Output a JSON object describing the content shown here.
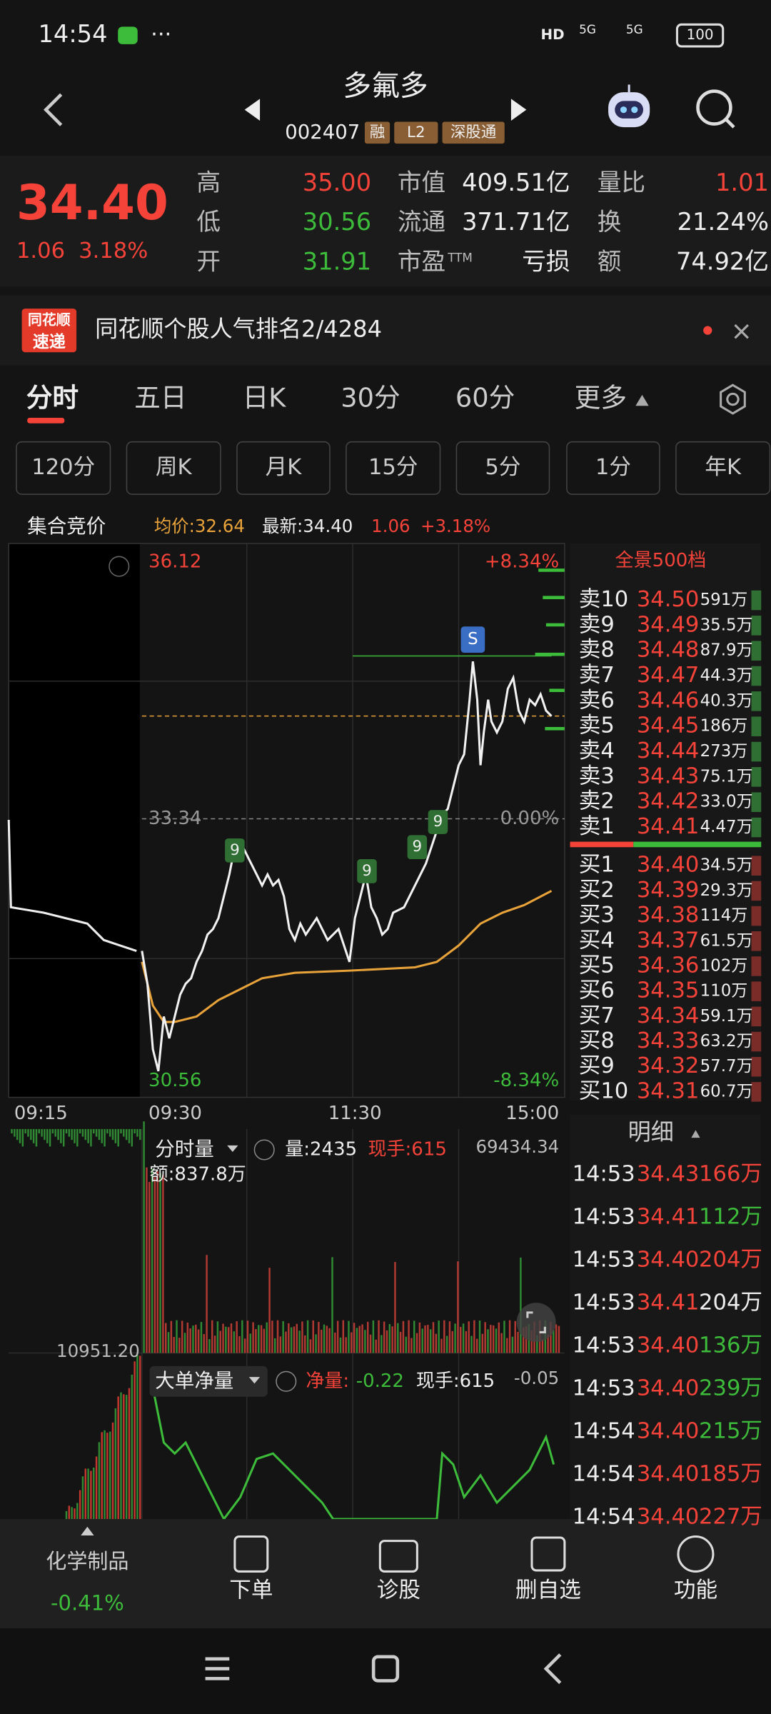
{
  "status_bar": {
    "time": "14:54",
    "hd": "HD",
    "network": "5G",
    "network2": "5G",
    "battery": "100"
  },
  "header": {
    "title": "多氟多",
    "code": "002407",
    "tags": [
      "融",
      "L2",
      "深股通"
    ]
  },
  "quote": {
    "price": "34.40",
    "change": "1.06",
    "change_pct": "3.18%",
    "stats": [
      {
        "label": "高",
        "value": "35.00"
      },
      {
        "label": "低",
        "value": "30.56"
      },
      {
        "label": "开",
        "value": "31.91"
      },
      {
        "label": "市值",
        "value": "409.51亿"
      },
      {
        "label": "流通",
        "value": "371.71亿"
      },
      {
        "label": "市盈",
        "label_sup": "TTM",
        "value": "亏损"
      },
      {
        "label": "量比",
        "value": "1.01"
      },
      {
        "label": "换",
        "value": "21.24%"
      },
      {
        "label": "额",
        "value": "74.92亿"
      }
    ]
  },
  "banner": {
    "badge_top": "同花顺",
    "badge_bottom": "速递",
    "text": "同花顺个股人气排名2/4284"
  },
  "tabs": [
    "分时",
    "五日",
    "日K",
    "30分",
    "60分",
    "更多"
  ],
  "sub_tabs": [
    "120分",
    "周K",
    "月K",
    "15分",
    "5分",
    "1分",
    "年K"
  ],
  "info_bar": {
    "title": "集合竞价",
    "avg": "均价:32.64",
    "latest": "最新:34.40",
    "change": "1.06",
    "change_pct": "+3.18%"
  },
  "price_chart": {
    "high": "36.12",
    "high_pct": "+8.34%",
    "base": "33.34",
    "base_pct": "0.00%",
    "low": "30.56",
    "low_pct": "-8.34%",
    "times": [
      "09:15",
      "09:30",
      "11:30",
      "15:00"
    ],
    "signal": "S",
    "markers": [
      "9",
      "9",
      "9",
      "9"
    ]
  },
  "order_book": {
    "title": "全景500档",
    "asks": [
      {
        "label": "卖10",
        "price": "34.50",
        "volume": "591万"
      },
      {
        "label": "卖9",
        "price": "34.49",
        "volume": "35.5万"
      },
      {
        "label": "卖8",
        "price": "34.48",
        "volume": "87.9万"
      },
      {
        "label": "卖7",
        "price": "34.47",
        "volume": "44.3万"
      },
      {
        "label": "卖6",
        "price": "34.46",
        "volume": "40.3万"
      },
      {
        "label": "卖5",
        "price": "34.45",
        "volume": "186万"
      },
      {
        "label": "卖4",
        "price": "34.44",
        "volume": "273万"
      },
      {
        "label": "卖3",
        "price": "34.43",
        "volume": "75.1万"
      },
      {
        "label": "卖2",
        "price": "34.42",
        "volume": "33.0万"
      },
      {
        "label": "卖1",
        "price": "34.41",
        "volume": "4.47万"
      }
    ],
    "bids": [
      {
        "label": "买1",
        "price": "34.40",
        "volume": "34.5万"
      },
      {
        "label": "买2",
        "price": "34.39",
        "volume": "29.3万"
      },
      {
        "label": "买3",
        "price": "34.38",
        "volume": "114万"
      },
      {
        "label": "买4",
        "price": "34.37",
        "volume": "61.5万"
      },
      {
        "label": "买5",
        "price": "34.36",
        "volume": "102万"
      },
      {
        "label": "买6",
        "price": "34.35",
        "volume": "110万"
      },
      {
        "label": "买7",
        "price": "34.34",
        "volume": "59.1万"
      },
      {
        "label": "买8",
        "price": "34.33",
        "volume": "63.2万"
      },
      {
        "label": "买9",
        "price": "34.32",
        "volume": "57.7万"
      },
      {
        "label": "买10",
        "price": "34.31",
        "volume": "60.7万"
      }
    ]
  },
  "trade_detail": {
    "title": "明细",
    "rows": [
      {
        "time": "14:53",
        "price": "34.43",
        "volume": "166万"
      },
      {
        "time": "14:53",
        "price": "34.41",
        "volume": "112万"
      },
      {
        "time": "14:53",
        "price": "34.40",
        "volume": "204万"
      },
      {
        "time": "14:53",
        "price": "34.41",
        "volume": "204万"
      },
      {
        "time": "14:53",
        "price": "34.40",
        "volume": "136万"
      },
      {
        "time": "14:53",
        "price": "34.40",
        "volume": "239万"
      },
      {
        "time": "14:54",
        "price": "34.40",
        "volume": "215万"
      },
      {
        "time": "14:54",
        "price": "34.40",
        "volume": "185万"
      },
      {
        "time": "14:54",
        "price": "34.40",
        "volume": "227万"
      }
    ]
  },
  "volume_panel": {
    "title": "分时量",
    "volume": "量:2435",
    "current": "现手:615",
    "max": "69434.34",
    "amount": "额:837.8万",
    "left_max": "10951.20"
  },
  "big_order_panel": {
    "title": "大单净量",
    "net_label": "净量:",
    "net_value": "-0.22",
    "current": "现手:615",
    "value": "-0.05"
  },
  "bottom_nav": {
    "sector": "化学制品",
    "sector_change": "-0.41%",
    "items": [
      "下单",
      "诊股",
      "删自选",
      "功能"
    ]
  }
}
